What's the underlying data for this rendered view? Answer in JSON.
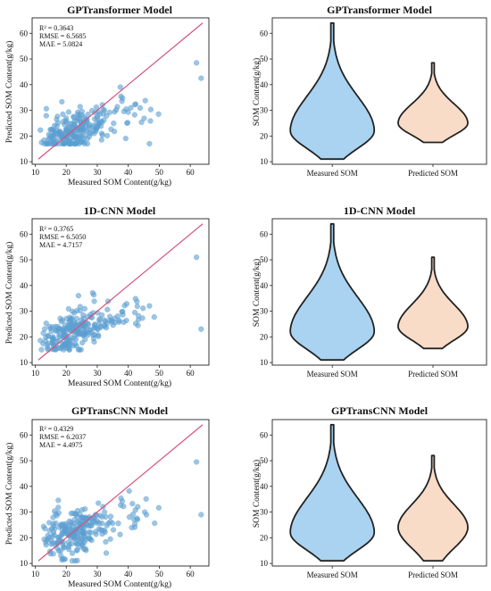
{
  "colors": {
    "scatter_point": "#5b9fd1",
    "identity_line": "#d5537a",
    "violin_measured": "#a9d3f0",
    "violin_predicted": "#f8dcc8",
    "violin_outline": "#222222"
  },
  "chart_data": [
    {
      "type": "scatter",
      "title": "GPTransformer Model",
      "xlabel": "Measured SOM Content(g/kg)",
      "ylabel": "Predicted SOM Content(g/kg)",
      "xlim": [
        9,
        66
      ],
      "ylim": [
        9,
        66
      ],
      "xticks": [
        "10",
        "20",
        "30",
        "40",
        "50",
        "60"
      ],
      "yticks": [
        "10",
        "20",
        "30",
        "40",
        "50",
        "60"
      ],
      "stats": [
        "R² = 0.3643",
        "RMSE = 6.5685",
        "MAE = 5.0824"
      ],
      "reference_line": {
        "x": [
          11,
          64
        ],
        "y": [
          11,
          64
        ]
      },
      "points": {
        "x_range": [
          11,
          64
        ],
        "y_range": [
          17,
          48
        ],
        "count": 240,
        "outliers": [
          {
            "x": 62,
            "y": 48.5
          },
          {
            "x": 63.5,
            "y": 42.5
          }
        ]
      }
    },
    {
      "type": "violin",
      "title": "GPTransformer Model",
      "ylabel": "SOM Content(g/kg)",
      "ylim": [
        9,
        66
      ],
      "yticks": [
        "10",
        "20",
        "30",
        "40",
        "50",
        "60"
      ],
      "categories": [
        "Measured SOM",
        "Predicted SOM"
      ],
      "series": [
        {
          "name": "Measured SOM",
          "min": 11,
          "max": 64,
          "mode": 22
        },
        {
          "name": "Predicted SOM",
          "min": 17.5,
          "max": 48.5,
          "mode": 25
        }
      ]
    },
    {
      "type": "scatter",
      "title": "1D-CNN Model",
      "xlabel": "Measured SOM Content(g/kg)",
      "ylabel": "Predicted SOM Content(g/kg)",
      "xlim": [
        9,
        66
      ],
      "ylim": [
        9,
        66
      ],
      "xticks": [
        "10",
        "20",
        "30",
        "40",
        "50",
        "60"
      ],
      "yticks": [
        "10",
        "20",
        "30",
        "40",
        "50",
        "60"
      ],
      "stats": [
        "R² = 0.3765",
        "RMSE = 6.5050",
        "MAE = 4.7157"
      ],
      "reference_line": {
        "x": [
          11,
          64
        ],
        "y": [
          11,
          64
        ]
      },
      "points": {
        "x_range": [
          11,
          64
        ],
        "y_range": [
          15,
          51
        ],
        "count": 240,
        "outliers": [
          {
            "x": 62,
            "y": 51
          },
          {
            "x": 63.5,
            "y": 23
          }
        ]
      }
    },
    {
      "type": "violin",
      "title": "1D-CNN Model",
      "ylabel": "SOM Content(g/kg)",
      "ylim": [
        9,
        66
      ],
      "yticks": [
        "10",
        "20",
        "30",
        "40",
        "50",
        "60"
      ],
      "categories": [
        "Measured SOM",
        "Predicted SOM"
      ],
      "series": [
        {
          "name": "Measured SOM",
          "min": 11,
          "max": 64,
          "mode": 22
        },
        {
          "name": "Predicted SOM",
          "min": 15.5,
          "max": 51,
          "mode": 24
        }
      ]
    },
    {
      "type": "scatter",
      "title": "GPTransCNN Model",
      "xlabel": "Measured SOM Content(g/kg)",
      "ylabel": "Predicted SOM Content(g/kg)",
      "xlim": [
        9,
        66
      ],
      "ylim": [
        9,
        66
      ],
      "xticks": [
        "10",
        "20",
        "30",
        "40",
        "50",
        "60"
      ],
      "yticks": [
        "10",
        "20",
        "30",
        "40",
        "50",
        "60"
      ],
      "stats": [
        "R² = 0.4329",
        "RMSE = 6.2037",
        "MAE = 4.4975"
      ],
      "reference_line": {
        "x": [
          11,
          64
        ],
        "y": [
          11,
          64
        ]
      },
      "points": {
        "x_range": [
          11,
          64
        ],
        "y_range": [
          11,
          52
        ],
        "count": 240,
        "outliers": [
          {
            "x": 62,
            "y": 49.5
          },
          {
            "x": 63.5,
            "y": 29
          }
        ]
      }
    },
    {
      "type": "violin",
      "title": "GPTransCNN Model",
      "ylabel": "SOM Content(g/kg)",
      "ylim": [
        9,
        66
      ],
      "yticks": [
        "10",
        "20",
        "30",
        "40",
        "50",
        "60"
      ],
      "categories": [
        "Measured SOM",
        "Predicted SOM"
      ],
      "series": [
        {
          "name": "Measured SOM",
          "min": 11,
          "max": 64,
          "mode": 22
        },
        {
          "name": "Predicted SOM",
          "min": 11,
          "max": 52,
          "mode": 24
        }
      ]
    }
  ]
}
